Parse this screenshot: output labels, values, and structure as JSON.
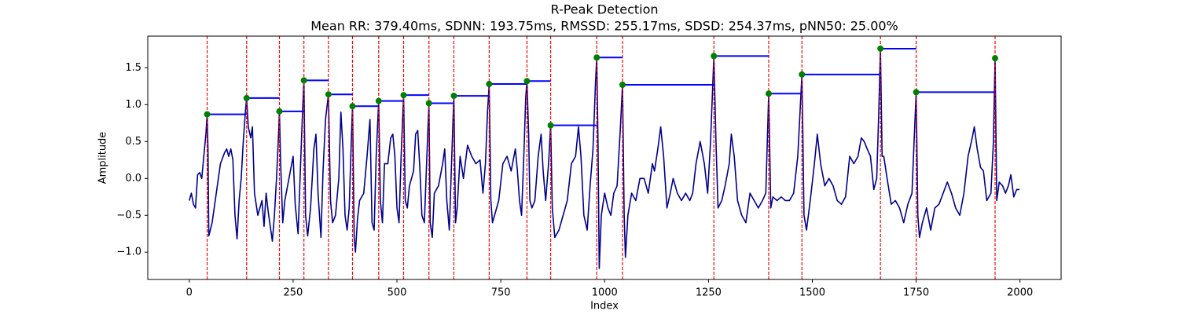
{
  "chart_data": {
    "type": "line",
    "title": "R-Peak Detection",
    "subtitle": "Mean RR: 379.40ms, SDNN: 193.75ms, RMSSD: 255.17ms, SDSD: 254.37ms, pNN50: 25.00%",
    "x_label": "Index",
    "y_label": "Amplitude",
    "xlim": [
      -99.95,
      2098.95
    ],
    "ylim": [
      -1.37,
      1.93
    ],
    "xticks": [
      0,
      250,
      500,
      750,
      1000,
      1250,
      1500,
      1750,
      2000
    ],
    "yticks": [
      {
        "value": -1,
        "label": "−1.0"
      },
      {
        "value": -0.5,
        "label": "−0.5"
      },
      {
        "value": 0,
        "label": "0.0"
      },
      0.5,
      {
        "value": 1,
        "label": "1.0"
      },
      1.5
    ],
    "x": [
      0,
      5,
      10,
      15,
      20,
      25,
      30,
      35,
      40,
      43,
      45,
      47,
      55,
      65,
      75,
      85,
      90,
      95,
      100,
      105,
      110,
      115,
      120,
      125,
      130,
      135,
      138,
      142,
      148,
      152,
      157,
      165,
      175,
      180,
      185,
      190,
      200,
      205,
      210,
      215,
      217,
      220,
      225,
      230,
      240,
      250,
      255,
      262,
      268,
      272,
      276,
      280,
      285,
      292,
      300,
      305,
      310,
      317,
      322,
      328,
      335,
      340,
      345,
      352,
      360,
      365,
      370,
      375,
      380,
      385,
      390,
      393,
      397,
      400,
      405,
      410,
      420,
      428,
      435,
      440,
      445,
      450,
      456,
      460,
      465,
      470,
      478,
      485,
      490,
      495,
      500,
      505,
      510,
      516,
      520,
      525,
      530,
      540,
      545,
      550,
      555,
      560,
      566,
      572,
      577,
      580,
      585,
      590,
      600,
      610,
      615,
      620,
      626,
      632,
      637,
      641,
      645,
      652,
      660,
      670,
      680,
      690,
      700,
      707,
      713,
      718,
      722,
      726,
      730,
      735,
      745,
      755,
      765,
      775,
      785,
      790,
      795,
      800,
      806,
      810,
      813,
      817,
      820,
      825,
      832,
      840,
      847,
      852,
      858,
      865,
      870,
      874,
      880,
      890,
      900,
      910,
      920,
      930,
      937,
      943,
      950,
      958,
      965,
      972,
      978,
      981,
      984,
      987,
      992,
      1000,
      1008,
      1015,
      1022,
      1030,
      1038,
      1043,
      1047,
      1050,
      1056,
      1065,
      1075,
      1085,
      1095,
      1105,
      1115,
      1120,
      1128,
      1135,
      1142,
      1150,
      1158,
      1165,
      1175,
      1185,
      1195,
      1205,
      1212,
      1220,
      1230,
      1240,
      1248,
      1255,
      1263,
      1268,
      1273,
      1282,
      1290,
      1300,
      1305,
      1312,
      1320,
      1330,
      1340,
      1350,
      1360,
      1370,
      1380,
      1388,
      1395,
      1400,
      1405,
      1415,
      1425,
      1435,
      1445,
      1455,
      1465,
      1475,
      1480,
      1486,
      1495,
      1505,
      1512,
      1520,
      1530,
      1540,
      1550,
      1560,
      1570,
      1580,
      1590,
      1600,
      1610,
      1618,
      1625,
      1632,
      1640,
      1648,
      1655,
      1660,
      1664,
      1668,
      1672,
      1680,
      1690,
      1700,
      1710,
      1720,
      1730,
      1740,
      1745,
      1750,
      1754,
      1758,
      1765,
      1775,
      1785,
      1795,
      1805,
      1815,
      1825,
      1835,
      1845,
      1855,
      1865,
      1875,
      1885,
      1890,
      1897,
      1905,
      1912,
      1920,
      1930,
      1936,
      1940,
      1944,
      1950,
      1958,
      1965,
      1972,
      1978,
      1985,
      1992,
      1999
    ],
    "series": [
      {
        "color": "#00008b",
        "values": [
          -0.3,
          -0.2,
          -0.35,
          -0.4,
          0.05,
          0.08,
          0.0,
          0.3,
          0.6,
          0.87,
          0.4,
          -0.78,
          -0.6,
          -0.2,
          0.2,
          0.35,
          0.4,
          0.3,
          0.4,
          0.25,
          -0.5,
          -0.82,
          -0.3,
          0.0,
          0.5,
          0.9,
          1.09,
          0.7,
          0.55,
          0.7,
          -0.2,
          -0.5,
          -0.3,
          -0.65,
          -0.2,
          -0.45,
          -0.85,
          -0.5,
          0.0,
          0.6,
          0.91,
          0.2,
          -0.6,
          -0.3,
          0.0,
          0.3,
          -0.35,
          -0.75,
          0.2,
          0.8,
          1.33,
          -0.5,
          -0.78,
          -0.4,
          0.4,
          0.6,
          -0.2,
          -0.8,
          0.1,
          0.8,
          1.14,
          -0.3,
          -0.6,
          -0.5,
          0.0,
          0.9,
          0.4,
          -0.5,
          -0.7,
          -0.4,
          0.5,
          0.98,
          -0.8,
          -1.0,
          -0.55,
          -0.3,
          -0.2,
          0.3,
          0.8,
          -0.6,
          -0.7,
          0.3,
          1.05,
          -0.3,
          -0.6,
          0.2,
          0.2,
          0.55,
          0.6,
          0.3,
          -0.4,
          -0.6,
          0.3,
          1.13,
          -0.3,
          -0.4,
          -0.1,
          0.1,
          0.6,
          0.65,
          0.15,
          -0.5,
          -0.6,
          0.3,
          1.02,
          -0.6,
          -0.8,
          -0.2,
          -0.1,
          0.2,
          0.4,
          -0.3,
          -0.7,
          0.3,
          1.12,
          -0.6,
          -0.4,
          0.3,
          0.0,
          0.45,
          0.3,
          0.2,
          0.25,
          -0.2,
          0.2,
          0.9,
          1.28,
          -0.3,
          -0.6,
          -0.5,
          -0.3,
          0.2,
          0.3,
          0.1,
          0.4,
          0.1,
          -0.3,
          -0.5,
          0.4,
          1.1,
          1.32,
          0.6,
          -0.3,
          -0.4,
          -0.3,
          0.3,
          0.6,
          0.1,
          -0.3,
          0.2,
          0.72,
          -0.4,
          -0.8,
          -0.7,
          -0.5,
          -0.3,
          0.2,
          0.3,
          0.7,
          0.3,
          -0.5,
          -0.7,
          -0.1,
          0.4,
          1.3,
          1.64,
          0.5,
          -1.22,
          -0.5,
          -0.2,
          -0.4,
          -0.5,
          -0.2,
          -0.1,
          0.7,
          1.27,
          -0.5,
          -1.07,
          -0.5,
          -0.2,
          -0.3,
          0.0,
          0.0,
          -0.2,
          0.2,
          0.1,
          0.4,
          0.7,
          0.3,
          -0.4,
          -0.2,
          0.0,
          -0.2,
          -0.3,
          -0.2,
          -0.3,
          -0.2,
          0.2,
          0.5,
          0.2,
          -0.2,
          0.5,
          1.66,
          0.5,
          -0.4,
          -0.3,
          -0.1,
          0.2,
          0.6,
          0.3,
          -0.3,
          -0.5,
          -0.6,
          -0.2,
          -0.3,
          -0.4,
          -0.3,
          -0.2,
          1.15,
          -0.4,
          -0.25,
          -0.3,
          -0.25,
          -0.3,
          -0.3,
          -0.2,
          0.3,
          1.41,
          -0.5,
          -0.7,
          -0.3,
          0.2,
          0.6,
          0.2,
          -0.1,
          0.0,
          -0.1,
          -0.3,
          -0.35,
          -0.25,
          0.3,
          0.2,
          0.3,
          0.55,
          0.5,
          0.4,
          0.3,
          -0.15,
          0.0,
          0.9,
          1.76,
          0.3,
          0.3,
          0.0,
          -0.35,
          -0.3,
          -0.4,
          -0.6,
          -0.35,
          -0.2,
          0.5,
          1.17,
          -0.5,
          -0.8,
          -0.6,
          -0.4,
          -0.7,
          -0.4,
          -0.35,
          -0.2,
          -0.05,
          -0.2,
          -0.4,
          -0.5,
          -0.2,
          0.3,
          0.55,
          0.7,
          0.4,
          0.15,
          0.1,
          -0.3,
          -0.2,
          0.5,
          1.63,
          -0.3,
          -0.05,
          -0.1,
          -0.2,
          -0.1,
          0.05,
          -0.25,
          -0.15,
          -0.15
        ]
      }
    ],
    "peaks": {
      "x": [
        43,
        138,
        217,
        276,
        335,
        393,
        456,
        516,
        577,
        637,
        722,
        813,
        870,
        981,
        1043,
        1263,
        1395,
        1475,
        1664,
        1750,
        1940
      ],
      "values": [
        0.87,
        1.09,
        0.91,
        1.33,
        1.14,
        0.98,
        1.05,
        1.13,
        1.02,
        1.12,
        1.28,
        1.32,
        0.72,
        1.64,
        1.27,
        1.66,
        1.15,
        1.41,
        1.76,
        1.17,
        1.63
      ],
      "color": "#008000",
      "line_color": "#ff0000",
      "interval_color": "#0000ff"
    }
  }
}
